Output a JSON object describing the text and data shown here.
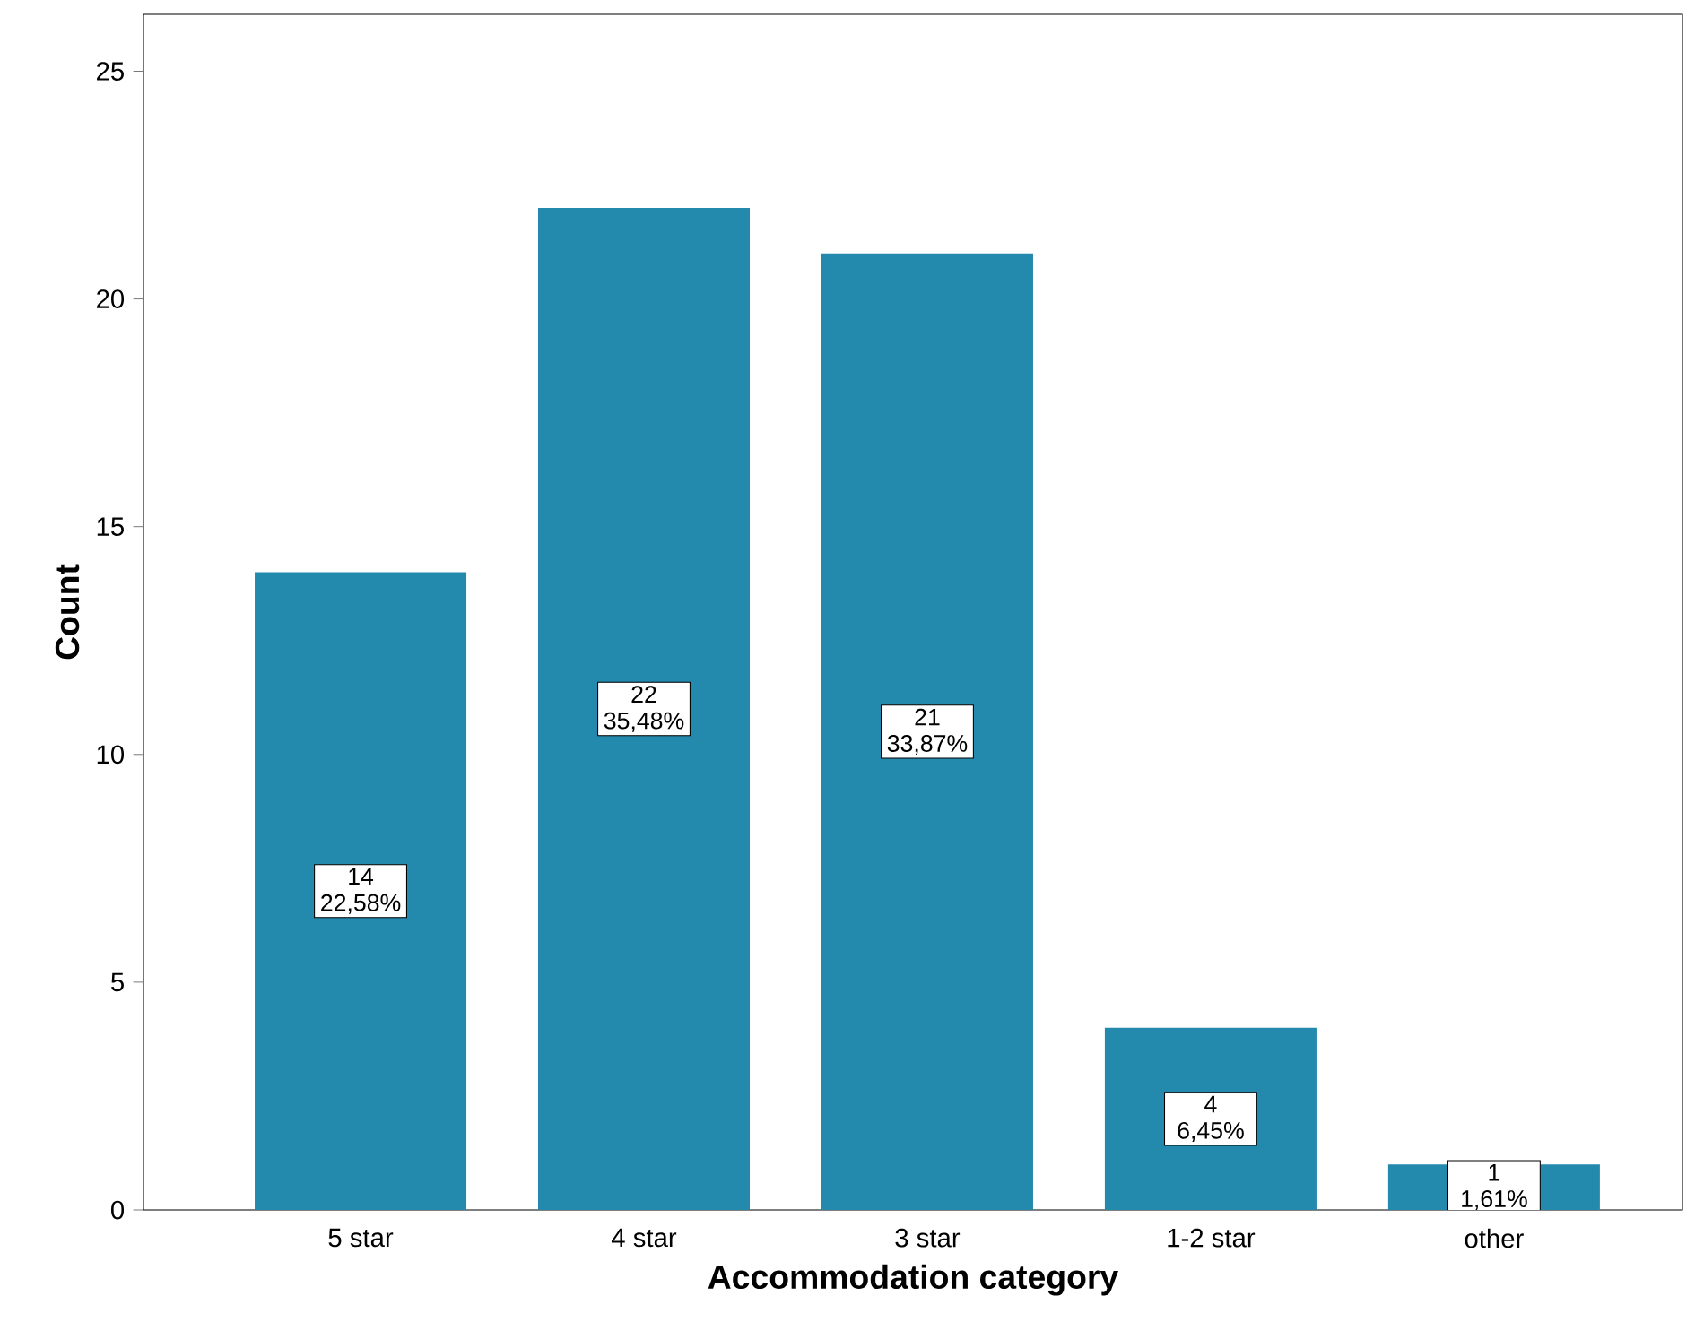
{
  "chart_data": {
    "type": "bar",
    "xlabel": "Accommodation category",
    "ylabel": "Count",
    "categories": [
      "5 star",
      "4 star",
      "3 star",
      "1-2 star",
      "other"
    ],
    "values": [
      14,
      22,
      21,
      4,
      1
    ],
    "value_labels": [
      "14 22,58%",
      "22 35,48%",
      "21 33,87%",
      "4 6,45%",
      "1 1,61%"
    ],
    "color": "#248aad",
    "ylim": [
      0,
      26.25
    ],
    "yticks": [
      0,
      5,
      10,
      15,
      20,
      25
    ],
    "grid": false
  }
}
